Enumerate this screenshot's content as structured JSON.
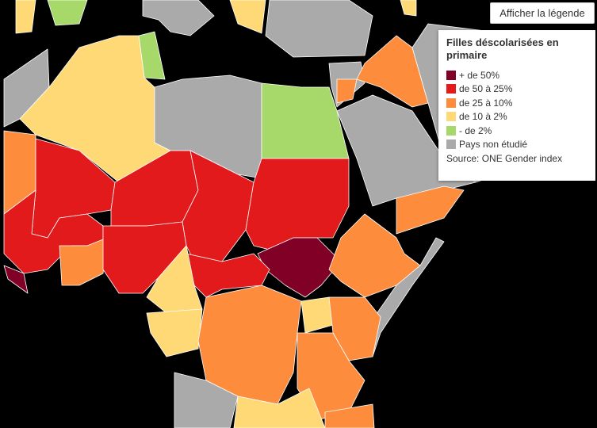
{
  "button": "Afficher la légende",
  "legend": {
    "title": "Filles déscolarisées en primaire",
    "items": [
      {
        "label": "+ de 50%",
        "color": "#800026"
      },
      {
        "label": "de 50 à 25%",
        "color": "#e31a1c"
      },
      {
        "label": "de 25 à 10%",
        "color": "#fd8d3c"
      },
      {
        "label": "de 10 à 2%",
        "color": "#fed976"
      },
      {
        "label": "- de 2%",
        "color": "#a6d96a"
      },
      {
        "label": "Pays non étudié",
        "color": "#aaaaaa"
      }
    ],
    "source": "Source: ONE Gender index"
  }
}
